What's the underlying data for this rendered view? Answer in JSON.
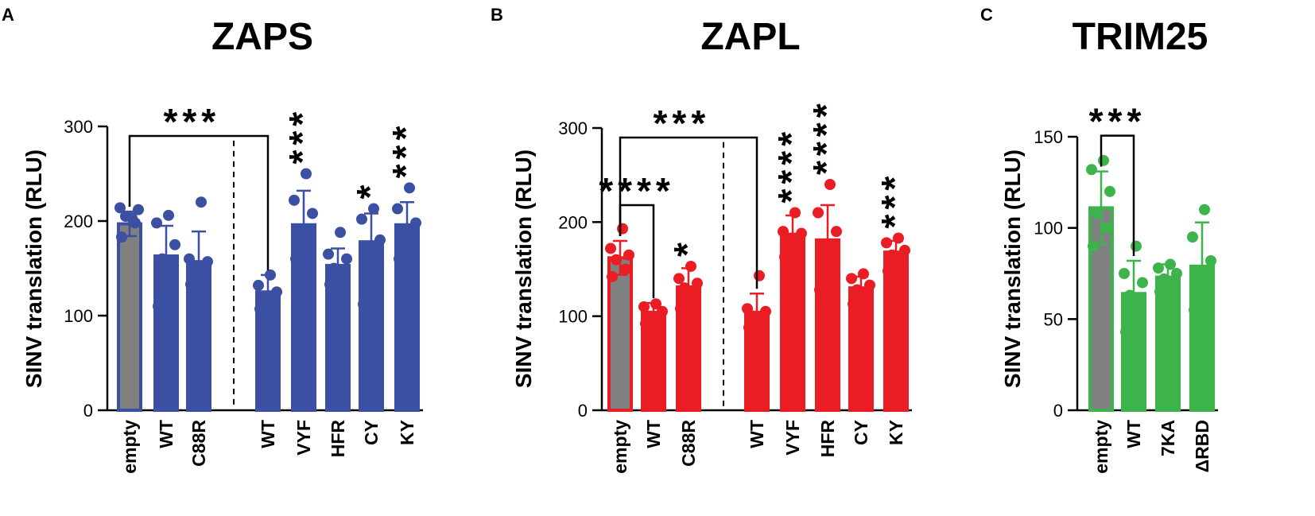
{
  "chart_data": [
    {
      "panel": "A",
      "type": "bar",
      "title": "ZAPS",
      "ylabel": "SINV translation (RLU)",
      "ylim": [
        0,
        300
      ],
      "yticks": [
        "0",
        "100",
        "200",
        "300"
      ],
      "color": "#3b4fa3",
      "empty_color": "#808080",
      "categories": [
        "empty",
        "WT",
        "C88R",
        "WT",
        "VYF",
        "HFR",
        "CY",
        "KY"
      ],
      "divider_after_index": 2,
      "values": [
        197,
        163,
        157,
        125,
        196,
        153,
        178,
        196
      ],
      "errors": [
        13,
        32,
        32,
        18,
        36,
        18,
        30,
        24
      ],
      "points": [
        [
          183,
          198,
          205,
          212,
          214,
          203
        ],
        [
          110,
          140,
          160,
          175,
          198,
          206
        ],
        [
          133,
          148,
          152,
          157,
          160,
          220
        ],
        [
          107,
          112,
          120,
          125,
          132,
          143
        ],
        [
          160,
          172,
          188,
          208,
          222,
          250
        ],
        [
          133,
          140,
          150,
          160,
          165,
          188
        ],
        [
          112,
          150,
          168,
          180,
          202,
          213
        ],
        [
          160,
          178,
          190,
          198,
          213,
          235
        ]
      ],
      "significance": [
        {
          "label": "***",
          "bracket": [
            0,
            3
          ]
        },
        {
          "label": "***",
          "index": 4
        },
        {
          "label": "*",
          "index": 6
        },
        {
          "label": "***",
          "index": 7
        }
      ]
    },
    {
      "panel": "B",
      "type": "bar",
      "title": "ZAPL",
      "ylabel": "SINV translation (RLU)",
      "ylim": [
        0,
        300
      ],
      "yticks": [
        "0",
        "100",
        "200",
        "300"
      ],
      "color": "#ea1c24",
      "empty_color": "#808080",
      "categories": [
        "empty",
        "WT",
        "C88R",
        "WT",
        "VYF",
        "HFR",
        "CY",
        "KY"
      ],
      "divider_after_index": 2,
      "values": [
        162,
        104,
        131,
        104,
        187,
        181,
        130,
        168
      ],
      "errors": [
        18,
        10,
        20,
        20,
        20,
        37,
        12,
        12
      ],
      "points": [
        [
          142,
          150,
          160,
          165,
          172,
          193
        ],
        [
          92,
          97,
          100,
          105,
          110,
          113
        ],
        [
          108,
          120,
          130,
          135,
          140,
          153
        ],
        [
          88,
          95,
          100,
          105,
          108,
          143
        ],
        [
          163,
          175,
          182,
          188,
          190,
          210
        ],
        [
          128,
          150,
          175,
          190,
          210,
          240
        ],
        [
          113,
          122,
          128,
          133,
          140,
          145
        ],
        [
          148,
          158,
          165,
          170,
          178,
          183
        ]
      ],
      "significance": [
        {
          "label": "***",
          "bracket": [
            0,
            3
          ]
        },
        {
          "label": "****",
          "bracket": [
            0,
            1
          ]
        },
        {
          "label": "*",
          "index": 2
        },
        {
          "label": "****",
          "index": 4
        },
        {
          "label": "****",
          "index": 5
        },
        {
          "label": "***",
          "index": 7
        }
      ]
    },
    {
      "panel": "C",
      "type": "bar",
      "title": "TRIM25",
      "ylabel": "SINV translation (RLU)",
      "ylim": [
        0,
        150
      ],
      "yticks": [
        "0",
        "50",
        "100",
        "150"
      ],
      "color": "#3cb44b",
      "empty_color": "#808080",
      "categories": [
        "empty",
        "WT",
        "7KA",
        "ΔRBD"
      ],
      "divider_after_index": null,
      "values": [
        111,
        64,
        73,
        79
      ],
      "errors": [
        20,
        18,
        7,
        24
      ],
      "points": [
        [
          90,
          100,
          108,
          120,
          132,
          137
        ],
        [
          43,
          52,
          63,
          70,
          75,
          90
        ],
        [
          65,
          70,
          72,
          75,
          78,
          80
        ],
        [
          55,
          64,
          70,
          82,
          95,
          110
        ]
      ],
      "significance": [
        {
          "label": "***",
          "bracket": [
            0,
            1
          ]
        }
      ]
    }
  ]
}
